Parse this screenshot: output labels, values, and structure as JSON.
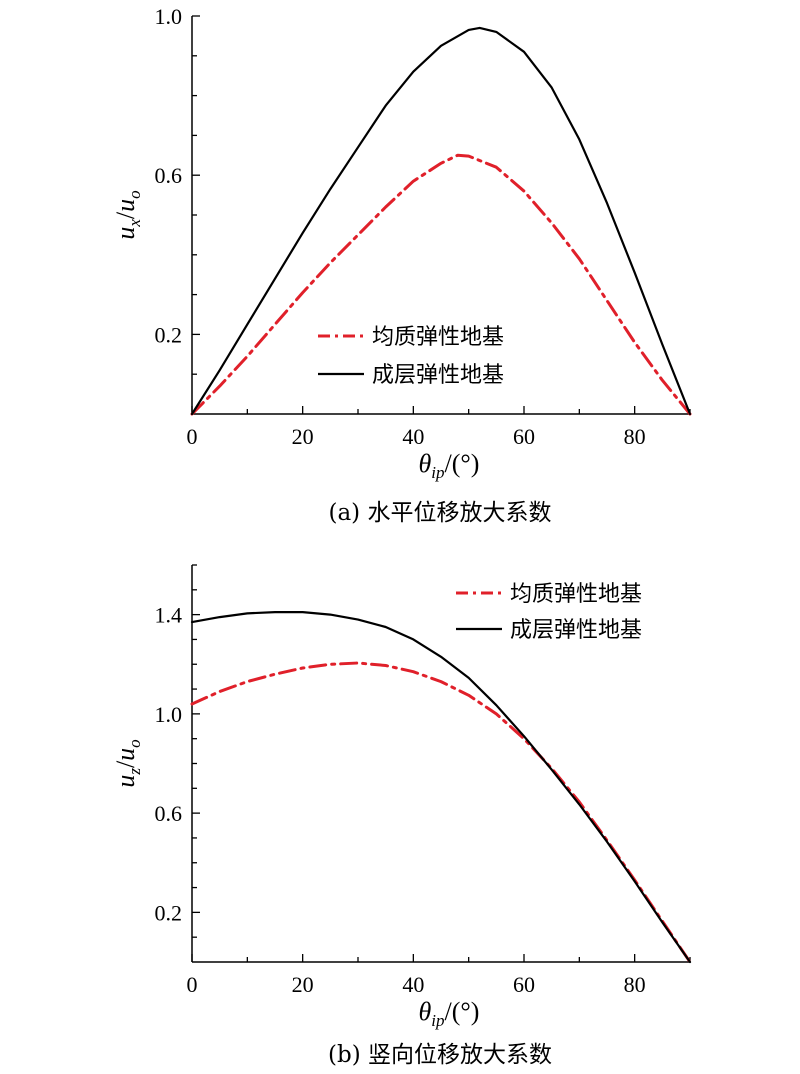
{
  "chart_data": [
    {
      "type": "line",
      "caption": "(a) 水平位移放大系数",
      "ylabel": {
        "main": "u",
        "sub": "x",
        "sep": "/",
        "den": "u",
        "den_sub": "o"
      },
      "xlabel": {
        "main": "θ",
        "sub": "ip",
        "rest": "/(°)"
      },
      "xlim": [
        0,
        90
      ],
      "ylim": [
        0,
        1.0
      ],
      "xticks": [
        0,
        20,
        40,
        60,
        80
      ],
      "yticks": [
        0.2,
        0.6,
        1.0
      ],
      "ytick_labels": [
        "0.2",
        "0.6",
        "1.0"
      ],
      "legend_position": "lower-center",
      "series": [
        {
          "name": "均质弹性地基",
          "style": "dashdot",
          "color": "#e0202a",
          "x": [
            0,
            5,
            10,
            15,
            20,
            25,
            30,
            35,
            40,
            45,
            48,
            50,
            55,
            60,
            65,
            70,
            75,
            80,
            85,
            90
          ],
          "y": [
            0.0,
            0.07,
            0.145,
            0.225,
            0.305,
            0.38,
            0.45,
            0.52,
            0.585,
            0.63,
            0.65,
            0.648,
            0.62,
            0.56,
            0.48,
            0.39,
            0.285,
            0.18,
            0.085,
            0.0
          ]
        },
        {
          "name": "成层弹性地基",
          "style": "solid",
          "color": "#000000",
          "x": [
            0,
            5,
            10,
            15,
            20,
            25,
            30,
            35,
            40,
            45,
            50,
            52,
            55,
            60,
            65,
            70,
            75,
            80,
            85,
            90
          ],
          "y": [
            0.0,
            0.11,
            0.225,
            0.34,
            0.455,
            0.565,
            0.67,
            0.775,
            0.86,
            0.925,
            0.965,
            0.97,
            0.96,
            0.91,
            0.82,
            0.69,
            0.53,
            0.355,
            0.175,
            0.0
          ]
        }
      ]
    },
    {
      "type": "line",
      "caption": "(b) 竖向位移放大系数",
      "ylabel": {
        "main": "u",
        "sub": "z",
        "sep": "/",
        "den": "u",
        "den_sub": "o"
      },
      "xlabel": {
        "main": "θ",
        "sub": "ip",
        "rest": "/(°)"
      },
      "xlim": [
        0,
        90
      ],
      "ylim": [
        0,
        1.6
      ],
      "xticks": [
        0,
        20,
        40,
        60,
        80
      ],
      "yticks": [
        0.2,
        0.6,
        1.0,
        1.4
      ],
      "ytick_labels": [
        "0.2",
        "0.6",
        "1.0",
        "1.4"
      ],
      "legend_position": "top-right",
      "series": [
        {
          "name": "均质弹性地基",
          "style": "dashdot",
          "color": "#e0202a",
          "x": [
            0,
            5,
            10,
            15,
            20,
            25,
            30,
            35,
            40,
            45,
            50,
            55,
            60,
            65,
            70,
            75,
            80,
            85,
            90
          ],
          "y": [
            1.04,
            1.09,
            1.13,
            1.16,
            1.185,
            1.2,
            1.205,
            1.195,
            1.17,
            1.13,
            1.075,
            1.0,
            0.9,
            0.78,
            0.645,
            0.49,
            0.33,
            0.165,
            0.0
          ]
        },
        {
          "name": "成层弹性地基",
          "style": "solid",
          "color": "#000000",
          "x": [
            0,
            5,
            10,
            15,
            20,
            25,
            30,
            35,
            40,
            45,
            50,
            55,
            60,
            65,
            70,
            75,
            80,
            85,
            90
          ],
          "y": [
            1.37,
            1.39,
            1.405,
            1.41,
            1.41,
            1.4,
            1.38,
            1.35,
            1.3,
            1.23,
            1.145,
            1.035,
            0.91,
            0.775,
            0.635,
            0.485,
            0.325,
            0.16,
            0.0
          ]
        }
      ]
    }
  ]
}
